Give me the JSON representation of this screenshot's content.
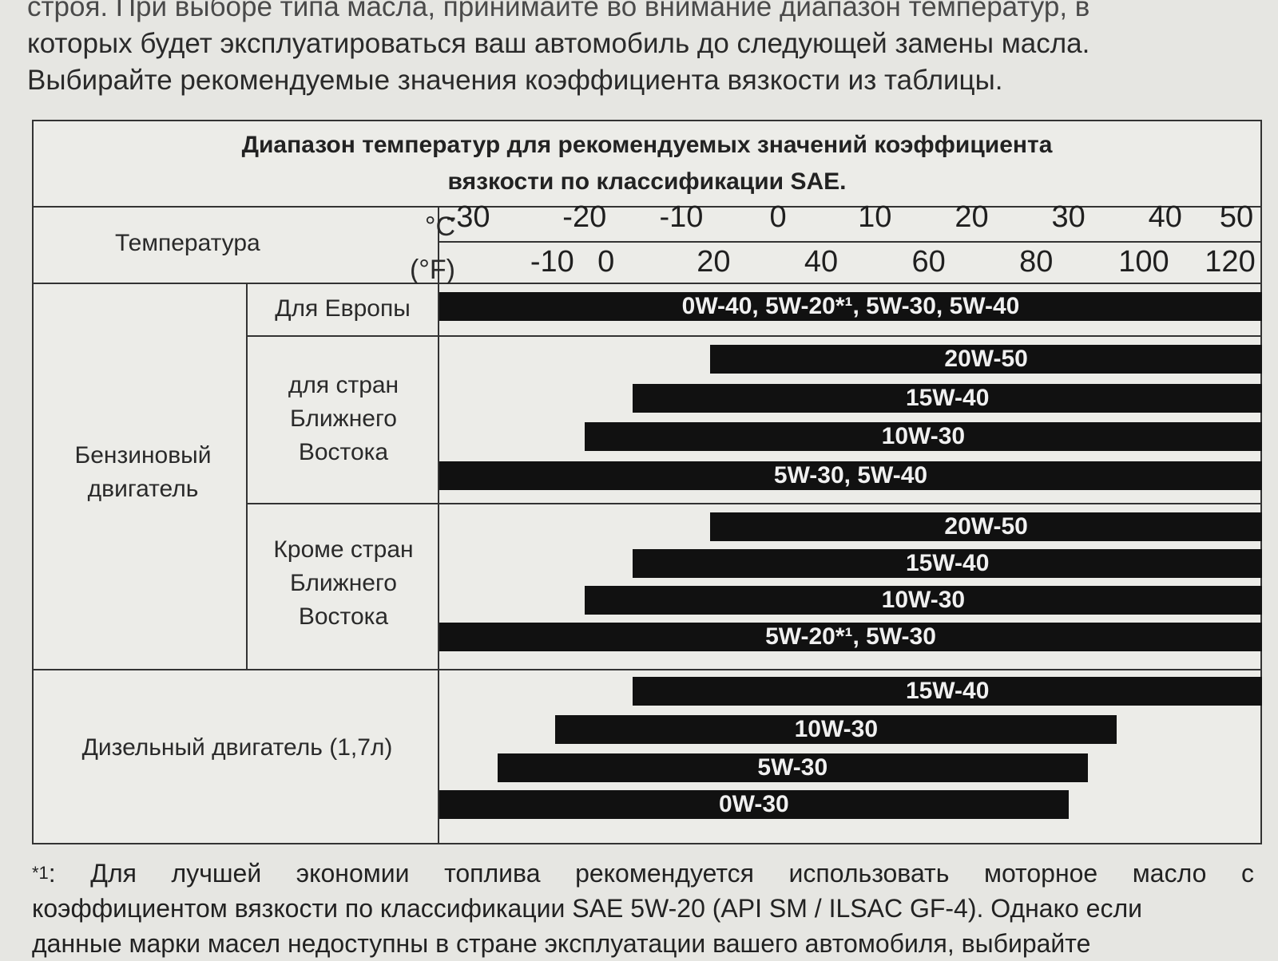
{
  "intro": {
    "line1": "строя. При выборе типа масла, принимайте во внимание диапазон температур, в",
    "line2": "которых будет эксплуатироваться ваш автомобиль до следующей замены масла.",
    "line3": "Выбирайте рекомендуемые значения коэффициента вязкости из таблицы."
  },
  "table": {
    "title_line1": "Диапазон температур для рекомендуемых значений коэффициента",
    "title_line2": "вязкости по классификации SAE.",
    "temperature_label": "Температура",
    "unit_c": "°C",
    "unit_f": "(°F)",
    "celsius_ticks": [
      "-30",
      "-20",
      "-10",
      "0",
      "10",
      "20",
      "30",
      "40",
      "50"
    ],
    "fahrenheit_ticks": [
      "-10",
      "0",
      "20",
      "40",
      "60",
      "80",
      "100",
      "120"
    ],
    "petrol_engine_label": "Бензиновый двигатель",
    "europe_label": "Для Европы",
    "middle_east_label": "для стран Ближнего Востока",
    "except_middle_east_label": "Кроме стран Ближнего Востока",
    "diesel_label": "Дизельный двигатель (1,7л)"
  },
  "chart_data": {
    "type": "bar",
    "orientation": "horizontal",
    "title": "Диапазон температур для рекомендуемых значений коэффициента вязкости по классификации SAE.",
    "xlabel": "Температура",
    "x_unit": "°C",
    "xlim": [
      -35,
      50
    ],
    "groups": [
      {
        "name": "Для Европы",
        "bars": [
          {
            "label": "0W-40, 5W-20*¹, 5W-30, 5W-40",
            "from": -35,
            "to": 50
          }
        ]
      },
      {
        "name": "для стран Ближнего Востока",
        "bars": [
          {
            "label": "20W-50",
            "from": -7,
            "to": 50
          },
          {
            "label": "15W-40",
            "from": -15,
            "to": 50
          },
          {
            "label": "10W-30",
            "from": -20,
            "to": 50
          },
          {
            "label": "5W-30, 5W-40",
            "from": -35,
            "to": 50
          }
        ]
      },
      {
        "name": "Кроме стран Ближнего Востока",
        "bars": [
          {
            "label": "20W-50",
            "from": -7,
            "to": 50
          },
          {
            "label": "15W-40",
            "from": -15,
            "to": 50
          },
          {
            "label": "10W-30",
            "from": -20,
            "to": 50
          },
          {
            "label": "5W-20*¹, 5W-30",
            "from": -35,
            "to": 50
          }
        ]
      },
      {
        "name": "Дизельный двигатель (1,7л)",
        "bars": [
          {
            "label": "15W-40",
            "from": -15,
            "to": 50
          },
          {
            "label": "10W-30",
            "from": -23,
            "to": 35
          },
          {
            "label": "5W-30",
            "from": -29,
            "to": 32
          },
          {
            "label": "0W-30",
            "from": -35,
            "to": 30
          }
        ]
      }
    ]
  },
  "footnote": {
    "mark": "*1",
    "line1": ": Для лучшей экономии топлива рекомендуется использовать моторное масло с",
    "line2": "коэффициентом вязкости по классификации SAE 5W-20 (API SM / ILSAC GF-4). Однако если",
    "line3": "данные марки масел недоступны в стране эксплуатации вашего автомобиля, выбирайте"
  }
}
